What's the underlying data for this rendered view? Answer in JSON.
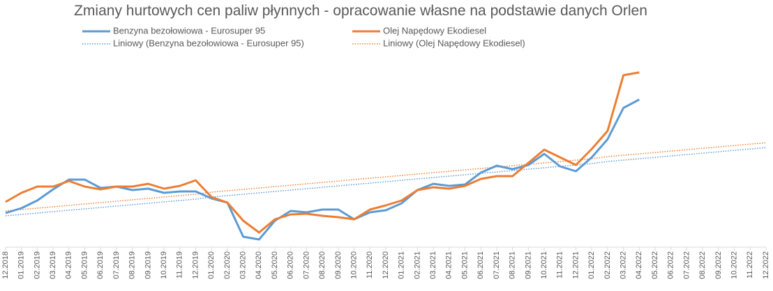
{
  "chart_data": {
    "type": "line",
    "title": "Zmiany hurtowych cen paliw płynnych - opracowanie własne na podstawie danych Orlen",
    "categories": [
      "12.2018",
      "01.2019",
      "02.2019",
      "03.2019",
      "04.2019",
      "05.2019",
      "06.2019",
      "07.2019",
      "08.2019",
      "09.2019",
      "10.2019",
      "11.2019",
      "12.2019",
      "01.2020",
      "02.2020",
      "03.2020",
      "04.2020",
      "05.2020",
      "06.2020",
      "07.2020",
      "08.2020",
      "09.2020",
      "10.2020",
      "11.2020",
      "12.2020",
      "01.2021",
      "02.2021",
      "03.2021",
      "04.2021",
      "05.2021",
      "06.2021",
      "07.2021",
      "08.2021",
      "09.2021",
      "10.2021",
      "11.2021",
      "12.2021",
      "01.2022",
      "02.2022",
      "03.2022",
      "04.2022",
      "05.2022",
      "06.2022",
      "07.2022",
      "08.2022",
      "09.2022",
      "10.2022",
      "11.2022",
      "12.2022"
    ],
    "series": [
      {
        "name": "Benzyna bezołowiowa - Eurosuper 95",
        "color": "#5b9bd5",
        "line_style": "solid",
        "values": [
          54,
          61,
          72,
          88,
          102,
          102,
          90,
          92,
          87,
          89,
          83,
          85,
          85,
          75,
          69,
          20,
          16,
          43,
          57,
          55,
          59,
          59,
          45,
          55,
          58,
          68,
          87,
          96,
          93,
          95,
          112,
          122,
          117,
          123,
          139,
          121,
          114,
          134,
          160,
          205,
          217,
          null,
          null,
          null,
          null,
          null,
          null,
          null,
          null
        ]
      },
      {
        "name": "Olej Napędowy Ekodiesel",
        "color": "#ed7d31",
        "line_style": "solid",
        "values": [
          70,
          83,
          92,
          92,
          100,
          92,
          88,
          92,
          92,
          96,
          89,
          93,
          101,
          77,
          69,
          43,
          26,
          45,
          52,
          53,
          50,
          48,
          45,
          59,
          65,
          72,
          87,
          91,
          89,
          93,
          103,
          107,
          107,
          126,
          145,
          134,
          123,
          146,
          172,
          252,
          256,
          null,
          null,
          null,
          null,
          null,
          null,
          null,
          null
        ]
      },
      {
        "name": "Liniowy (Benzyna bezołowiowa - Eurosuper 95)",
        "color": "#5b9bd5",
        "line_style": "dotted",
        "values": [
          50,
          52,
          54,
          56,
          58,
          60,
          62,
          64,
          66,
          68,
          70,
          72,
          74,
          77,
          79,
          81,
          83,
          85,
          87,
          89,
          91,
          93,
          95,
          97,
          99,
          101,
          103,
          105,
          107,
          109,
          111,
          113,
          115,
          117,
          119,
          121,
          123,
          125,
          128,
          130,
          132,
          134,
          136,
          138,
          140,
          142,
          144,
          146,
          148
        ]
      },
      {
        "name": "Liniowy (Olej Napędowy Ekodiesel)",
        "color": "#ed7d31",
        "line_style": "dotted",
        "values": [
          57,
          59,
          61,
          63,
          65,
          67,
          69,
          71,
          73,
          75,
          77,
          79,
          81,
          84,
          86,
          88,
          90,
          92,
          94,
          96,
          98,
          100,
          102,
          104,
          106,
          108,
          110,
          112,
          114,
          116,
          118,
          120,
          122,
          124,
          126,
          128,
          130,
          132,
          135,
          137,
          139,
          141,
          143,
          145,
          147,
          149,
          151,
          153,
          155
        ]
      }
    ]
  }
}
